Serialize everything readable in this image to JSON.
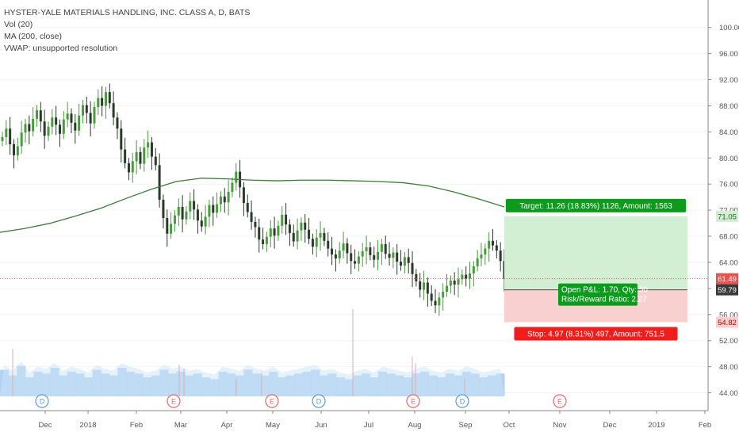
{
  "legend": {
    "symbol_line": "HYSTER-YALE MATERIALS HANDLING, INC. CLASS A, D, BATS",
    "vol_line": "Vol (20)",
    "ma_line": "MA (200, close)",
    "vwap_line": "VWAP: unsupported resolution"
  },
  "colors": {
    "up": "#4a9a3f",
    "down": "#2b3b2a",
    "ma": "#3b7d3b",
    "volume": "#9fc7ee",
    "volume_avg": "#cde5f8",
    "target_fill": "#d3efd3",
    "stop_fill": "#f8d0d0",
    "target_label": "#0d9b1d",
    "stop_label": "#f11d1d",
    "price_line": "#e8534f",
    "axis_text": "#555555"
  },
  "chart_data": {
    "type": "candlestick",
    "x_ticks": [
      "Dec",
      "2018",
      "Feb",
      "Mar",
      "Apr",
      "May",
      "Jun",
      "Jul",
      "Aug",
      "Sep",
      "Oct",
      "Nov",
      "Dec",
      "2019",
      "Feb"
    ],
    "y_ticks": [
      "100.00",
      "96.00",
      "92.00",
      "88.00",
      "84.00",
      "80.00",
      "76.00",
      "72.00",
      "68.00",
      "64.00",
      "60.00",
      "56.00",
      "52.00",
      "48.00",
      "44.00"
    ],
    "y_range": [
      42,
      103
    ],
    "close_series": [
      83.2,
      84.5,
      82.1,
      80.4,
      81.8,
      83.9,
      85.2,
      84.1,
      86.0,
      87.3,
      85.6,
      83.4,
      84.8,
      86.2,
      85.1,
      83.7,
      85.9,
      86.8,
      85.4,
      84.2,
      86.5,
      88.1,
      86.9,
      85.3,
      87.8,
      89.2,
      88.0,
      90.1,
      88.4,
      86.2,
      84.5,
      81.3,
      79.2,
      77.8,
      79.5,
      80.9,
      79.1,
      81.6,
      82.4,
      80.2,
      78.9,
      73.6,
      70.8,
      68.4,
      69.9,
      71.2,
      72.5,
      70.6,
      71.8,
      73.4,
      72.1,
      70.4,
      69.5,
      71.0,
      72.8,
      71.6,
      72.9,
      74.1,
      73.2,
      74.8,
      76.2,
      77.9,
      75.5,
      73.1,
      71.7,
      70.2,
      69.4,
      67.5,
      66.8,
      67.9,
      69.2,
      68.1,
      69.6,
      71.3,
      69.8,
      68.5,
      67.2,
      68.9,
      70.1,
      69.0,
      67.6,
      66.4,
      67.8,
      68.5,
      67.3,
      66.1,
      65.2,
      64.6,
      65.8,
      66.9,
      65.4,
      64.2,
      63.8,
      64.9,
      65.7,
      66.3,
      65.1,
      64.4,
      65.6,
      66.8,
      65.3,
      64.7,
      65.5,
      64.1,
      63.5,
      64.8,
      63.9,
      62.2,
      61.1,
      59.8,
      60.9,
      59.2,
      58.1,
      57.4,
      58.6,
      59.5,
      60.4,
      61.2,
      60.6,
      61.4,
      62.1,
      61.5,
      62.3,
      63.4,
      64.6,
      65.2,
      66.1,
      67.3,
      66.6,
      65.8,
      64.2,
      61.49
    ],
    "ma200": [
      68.6,
      69.2,
      70.0,
      71.1,
      72.3,
      73.8,
      75.2,
      76.4,
      76.9,
      76.8,
      76.6,
      76.5,
      76.6,
      76.6,
      76.5,
      76.4,
      76.2,
      75.7,
      74.8,
      73.7,
      72.5
    ],
    "volume": [
      14,
      11,
      16,
      10,
      13,
      12,
      15,
      11,
      13,
      12,
      10,
      14,
      12,
      11,
      15,
      13,
      12,
      10,
      11,
      14,
      12,
      13,
      11,
      12,
      10,
      9,
      13,
      12,
      11,
      14,
      12,
      11,
      13,
      10,
      11,
      12,
      13,
      14,
      11,
      12,
      10,
      9,
      11,
      12,
      10,
      13,
      12,
      11,
      10,
      12,
      13,
      11,
      10,
      12,
      11,
      13,
      12,
      10,
      11,
      12
    ],
    "current_price": "61.49",
    "entry_price": "59.79",
    "target_price": "71.05",
    "stop_price": "54.82",
    "target_label": "Target: 11.26 (18.83%) 1126, Amount: 1563",
    "stop_label": "Stop: 4.97 (8.31%) 497, Amount: 751.5",
    "pnl_line1": "Open P&L: 1.70, Qty: 50",
    "pnl_line2": "Risk/Reward Ratio: 2.27",
    "event_markers": [
      {
        "letter": "D"
      },
      {
        "letter": "E"
      },
      {
        "letter": "E"
      },
      {
        "letter": "D"
      },
      {
        "letter": "E"
      },
      {
        "letter": "D"
      },
      {
        "letter": "E"
      }
    ]
  }
}
